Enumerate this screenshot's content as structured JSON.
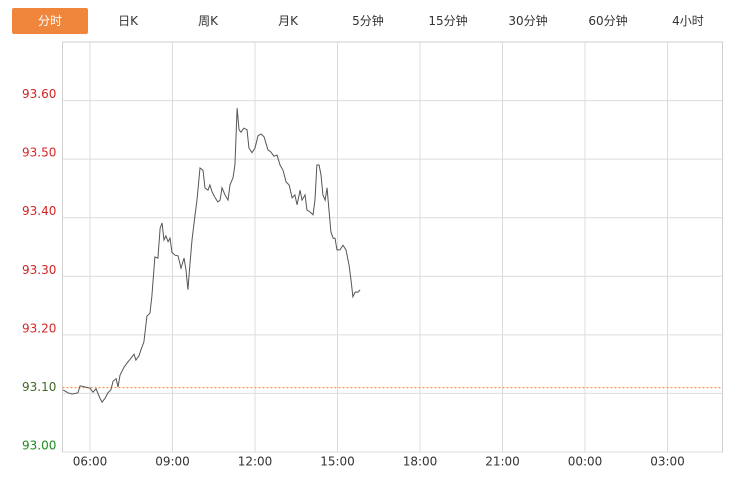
{
  "tabs": [
    "分时",
    "日K",
    "周K",
    "月K",
    "5分钟",
    "15分钟",
    "30分钟",
    "60分钟",
    "4小时"
  ],
  "active_tab": 0,
  "chart_data": {
    "type": "line",
    "x": [
      5.02,
      5.2,
      5.35,
      5.56,
      5.64,
      5.82,
      6.0,
      6.11,
      6.22,
      6.36,
      6.44,
      6.55,
      6.65,
      6.76,
      6.84,
      6.95,
      7.02,
      7.09,
      7.24,
      7.38,
      7.49,
      7.6,
      7.67,
      7.78,
      7.85,
      7.96,
      8.07,
      8.18,
      8.25,
      8.36,
      8.47,
      8.55,
      8.62,
      8.69,
      8.76,
      8.84,
      8.91,
      8.98,
      9.09,
      9.2,
      9.31,
      9.42,
      9.49,
      9.56,
      9.64,
      9.71,
      9.82,
      9.89,
      10.0,
      10.11,
      10.18,
      10.29,
      10.36,
      10.44,
      10.55,
      10.65,
      10.73,
      10.8,
      10.91,
      11.02,
      11.09,
      11.2,
      11.27,
      11.35,
      11.42,
      11.49,
      11.6,
      11.71,
      11.78,
      11.89,
      12.0,
      12.11,
      12.22,
      12.33,
      12.47,
      12.58,
      12.69,
      12.8,
      12.91,
      13.02,
      13.13,
      13.24,
      13.35,
      13.45,
      13.53,
      13.64,
      13.71,
      13.82,
      13.89,
      14.0,
      14.11,
      14.18,
      14.25,
      14.33,
      14.4,
      14.47,
      14.55,
      14.62,
      14.69,
      14.76,
      14.84,
      14.91,
      14.98,
      15.09,
      15.2,
      15.31,
      15.42,
      15.49,
      15.56,
      15.64,
      15.75,
      15.82
    ],
    "series": [
      {
        "color": "#555555",
        "values": [
          93.106,
          93.101,
          93.099,
          93.101,
          93.113,
          93.111,
          93.109,
          93.102,
          93.108,
          93.092,
          93.085,
          93.092,
          93.101,
          93.106,
          93.121,
          93.125,
          93.111,
          93.131,
          93.145,
          93.154,
          93.16,
          93.167,
          93.157,
          93.164,
          93.174,
          93.188,
          93.232,
          93.237,
          93.266,
          93.333,
          93.331,
          93.382,
          93.391,
          93.362,
          93.369,
          93.359,
          93.365,
          93.341,
          93.336,
          93.335,
          93.314,
          93.331,
          93.311,
          93.277,
          93.324,
          93.362,
          93.405,
          93.43,
          93.485,
          93.481,
          93.451,
          93.447,
          93.456,
          93.444,
          93.434,
          93.427,
          93.43,
          93.451,
          93.439,
          93.43,
          93.456,
          93.468,
          93.49,
          93.587,
          93.55,
          93.546,
          93.553,
          93.55,
          93.519,
          93.511,
          93.519,
          93.54,
          93.543,
          93.538,
          93.516,
          93.512,
          93.505,
          93.507,
          93.49,
          93.481,
          93.461,
          93.456,
          93.434,
          93.439,
          93.422,
          93.447,
          93.43,
          93.439,
          93.413,
          93.41,
          93.405,
          93.43,
          93.49,
          93.49,
          93.473,
          93.439,
          93.43,
          93.451,
          93.413,
          93.376,
          93.365,
          93.365,
          93.345,
          93.345,
          93.353,
          93.345,
          93.319,
          93.294,
          93.265,
          93.273,
          93.273,
          93.277
        ]
      }
    ],
    "reference_line": 93.11,
    "reference_color": "#f0863c",
    "xlim": [
      5,
      29
    ],
    "xticks": [
      {
        "value": 6,
        "label": "06:00"
      },
      {
        "value": 9,
        "label": "09:00"
      },
      {
        "value": 12,
        "label": "12:00"
      },
      {
        "value": 15,
        "label": "15:00"
      },
      {
        "value": 18,
        "label": "18:00"
      },
      {
        "value": 21,
        "label": "21:00"
      },
      {
        "value": 24,
        "label": "00:00"
      },
      {
        "value": 27,
        "label": "03:00"
      }
    ],
    "ylim": [
      93.0,
      93.7
    ],
    "yticks": [
      {
        "value": 93.0,
        "label": "93.00"
      },
      {
        "value": 93.1,
        "label": "93.10"
      },
      {
        "value": 93.2,
        "label": "93.20"
      },
      {
        "value": 93.3,
        "label": "93.30"
      },
      {
        "value": 93.4,
        "label": "93.40"
      },
      {
        "value": 93.5,
        "label": "93.50"
      },
      {
        "value": 93.6,
        "label": "93.60"
      }
    ],
    "ytick_colors": [
      "#1e8a1e",
      "#3f6a2a",
      "#d42424",
      "#d42424",
      "#d42424",
      "#d42424",
      "#d42424"
    ],
    "grid": true
  }
}
